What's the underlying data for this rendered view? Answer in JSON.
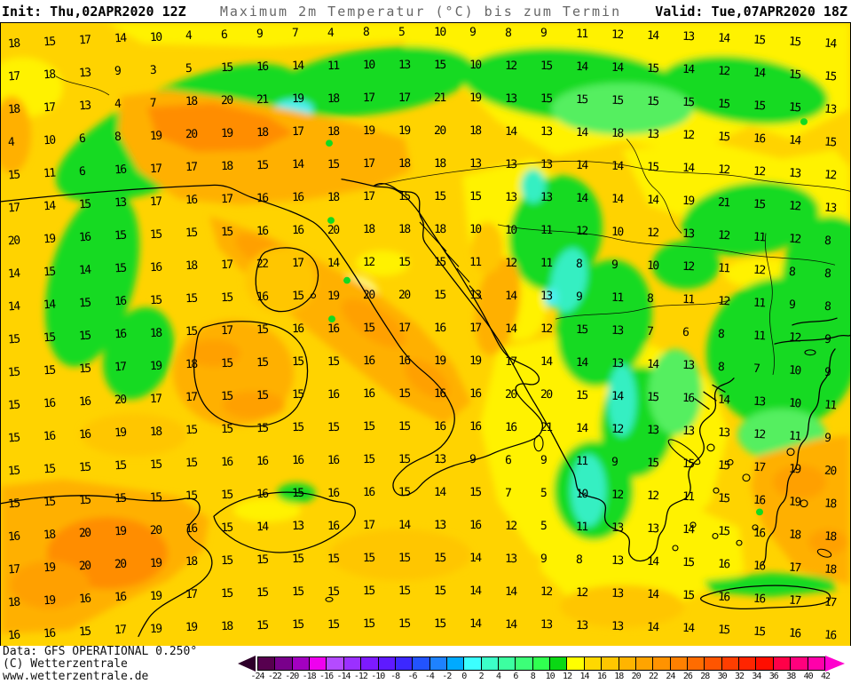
{
  "header": {
    "init_label": "Init: Thu,02APR2020 12Z",
    "title": "Maximum 2m Temperatur (°C) bis zum Termin",
    "valid_label": "Valid: Tue,07APR2020 18Z"
  },
  "footer": {
    "data_source": "Data: GFS OPERATIONAL 0.250°",
    "copyright": "(C) Wetterzentrale",
    "website": "www.wetterzentrale.de"
  },
  "colorbar": {
    "unit": "°C",
    "tick_labels": [
      "-24",
      "-22",
      "-20",
      "-18",
      "-16",
      "-14",
      "-12",
      "-10",
      "-8",
      "-6",
      "-4",
      "-2",
      "0",
      "2",
      "4",
      "6",
      "8",
      "10",
      "12",
      "14",
      "16",
      "18",
      "20",
      "22",
      "24",
      "26",
      "28",
      "30",
      "32",
      "34",
      "36",
      "38",
      "40",
      "42"
    ],
    "cell_colors": [
      "#57004f",
      "#79008b",
      "#a300c0",
      "#ef00ef",
      "#b44bff",
      "#9b30ff",
      "#7d1aff",
      "#5f1aff",
      "#3c28ff",
      "#2253ff",
      "#1e82ff",
      "#00aaff",
      "#3cffff",
      "#3cffc8",
      "#3cffa0",
      "#3cff78",
      "#30ff50",
      "#0ad814",
      "#ffff00",
      "#ffd800",
      "#ffc600",
      "#ffb400",
      "#ffa400",
      "#ff9300",
      "#ff8000",
      "#ff6c00",
      "#ff5500",
      "#ff3e00",
      "#ff2500",
      "#ff0e00",
      "#ff0048",
      "#ff007d",
      "#ff00aa"
    ],
    "left_arrow_color": "#2e002a",
    "right_arrow_color": "#ff00cd"
  },
  "map": {
    "palette": {
      "base_14_16": "#ffd300",
      "yellow_12_14": "#fff200",
      "green_8_12": "#12da20",
      "teal_2_6": "#36efc2",
      "cyan_0_2": "#4defef",
      "orange_18_20": "#ffb000",
      "orange_20_22": "#ffa000",
      "orange_22_24": "#ff8d00"
    },
    "temperature_grid": {
      "rows": [
        [
          18,
          15,
          17,
          14,
          10,
          4,
          6,
          9,
          7,
          4,
          8,
          5,
          10,
          9,
          8,
          9,
          11,
          12,
          14,
          13,
          14,
          15,
          15,
          14
        ],
        [
          17,
          18,
          13,
          9,
          3,
          5,
          15,
          16,
          14,
          11,
          10,
          13,
          15,
          10,
          12,
          15,
          14,
          14,
          15,
          14,
          12,
          14,
          15,
          15
        ],
        [
          18,
          17,
          13,
          4,
          7,
          18,
          20,
          21,
          19,
          18,
          17,
          17,
          21,
          19,
          13,
          15,
          15,
          15,
          15,
          15,
          15,
          15,
          15,
          13
        ],
        [
          4,
          10,
          6,
          8,
          19,
          20,
          19,
          18,
          17,
          18,
          19,
          19,
          20,
          18,
          14,
          13,
          14,
          18,
          13,
          12,
          15,
          16,
          14,
          15
        ],
        [
          15,
          11,
          6,
          16,
          17,
          17,
          18,
          15,
          14,
          15,
          17,
          18,
          18,
          13,
          13,
          13,
          14,
          14,
          15,
          14,
          12,
          12,
          13,
          12
        ],
        [
          17,
          14,
          15,
          13,
          17,
          16,
          17,
          16,
          16,
          18,
          17,
          15,
          15,
          15,
          13,
          13,
          14,
          14,
          14,
          19,
          21,
          15,
          12,
          13
        ],
        [
          20,
          19,
          16,
          15,
          15,
          15,
          15,
          16,
          16,
          20,
          18,
          18,
          18,
          10,
          10,
          11,
          12,
          10,
          12,
          13,
          12,
          11,
          12,
          8
        ],
        [
          14,
          15,
          14,
          15,
          16,
          18,
          17,
          22,
          17,
          14,
          12,
          15,
          15,
          11,
          12,
          11,
          8,
          9,
          10,
          12,
          11,
          12,
          8,
          8
        ],
        [
          14,
          14,
          15,
          16,
          15,
          15,
          15,
          16,
          15,
          19,
          20,
          20,
          15,
          13,
          14,
          13,
          9,
          11,
          8,
          11,
          12,
          11,
          9,
          8
        ],
        [
          15,
          15,
          15,
          16,
          18,
          15,
          17,
          15,
          16,
          16,
          15,
          17,
          16,
          17,
          14,
          12,
          15,
          13,
          7,
          6,
          8,
          11,
          12,
          9
        ],
        [
          15,
          15,
          15,
          17,
          19,
          18,
          15,
          15,
          15,
          15,
          16,
          16,
          19,
          19,
          17,
          14,
          14,
          13,
          14,
          13,
          8,
          7,
          10,
          9
        ],
        [
          15,
          16,
          16,
          20,
          17,
          17,
          15,
          15,
          15,
          16,
          16,
          15,
          16,
          16,
          20,
          20,
          15,
          14,
          15,
          16,
          14,
          13,
          10,
          11
        ],
        [
          15,
          16,
          16,
          19,
          18,
          15,
          15,
          15,
          15,
          15,
          15,
          15,
          16,
          16,
          16,
          21,
          14,
          12,
          13,
          13,
          13,
          12,
          11,
          9
        ],
        [
          15,
          15,
          15,
          15,
          15,
          15,
          16,
          16,
          16,
          16,
          15,
          15,
          13,
          9,
          6,
          9,
          11,
          9,
          15,
          15,
          15,
          17,
          19,
          20
        ],
        [
          15,
          15,
          15,
          15,
          15,
          15,
          15,
          16,
          15,
          16,
          16,
          15,
          14,
          15,
          7,
          5,
          10,
          12,
          12,
          11,
          15,
          16,
          19,
          18
        ],
        [
          16,
          18,
          20,
          19,
          20,
          16,
          15,
          14,
          13,
          16,
          17,
          14,
          13,
          16,
          12,
          5,
          11,
          13,
          13,
          14,
          15,
          16,
          18,
          18
        ],
        [
          17,
          19,
          20,
          20,
          19,
          18,
          15,
          15,
          15,
          15,
          15,
          15,
          15,
          14,
          13,
          9,
          8,
          13,
          14,
          15,
          16,
          16,
          17,
          18
        ],
        [
          18,
          19,
          16,
          16,
          19,
          17,
          15,
          15,
          15,
          15,
          15,
          15,
          15,
          14,
          14,
          12,
          12,
          13,
          14,
          15,
          16,
          16,
          17,
          17
        ],
        [
          16,
          16,
          15,
          17,
          19,
          19,
          18,
          15,
          15,
          15,
          15,
          15,
          15,
          14,
          14,
          13,
          13,
          13,
          14,
          14,
          15,
          15,
          16,
          16
        ]
      ]
    }
  }
}
